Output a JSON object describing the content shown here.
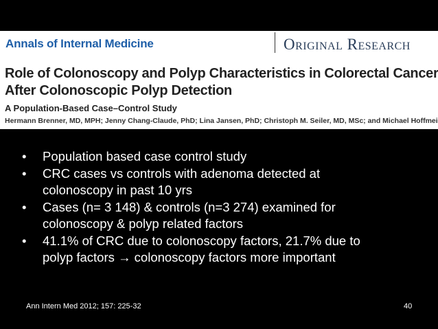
{
  "header": {
    "journal": "Annals of Internal Medicine",
    "section": "Original Research",
    "title": [
      "Role of Colonoscopy and Polyp Characteristics in Colorectal Cancer",
      "After Colonoscopic Polyp Detection"
    ],
    "subtitle": "A Population-Based Case–Control Study",
    "authors": "Hermann Brenner, MD, MPH; Jenny Chang-Claude, PhD; Lina Jansen, PhD; Christoph M. Seiler, MD, MSc; and Michael Hoffmeister, PhD"
  },
  "bullets": [
    [
      "Population based case control study"
    ],
    [
      "CRC cases vs controls with adenoma detected at",
      "colonoscopy in past 10 yrs"
    ],
    [
      "Cases (n= 3 148) & controls (n=3 274) examined for",
      "colonoscopy & polyp related factors"
    ],
    [
      "41.1% of CRC due to colonoscopy factors, 21.7% due to",
      "polyp factors → colonoscopy factors more important"
    ]
  ],
  "footer": {
    "citation": "Ann Intern Med 2012; 157: 225-32",
    "page": 40
  }
}
